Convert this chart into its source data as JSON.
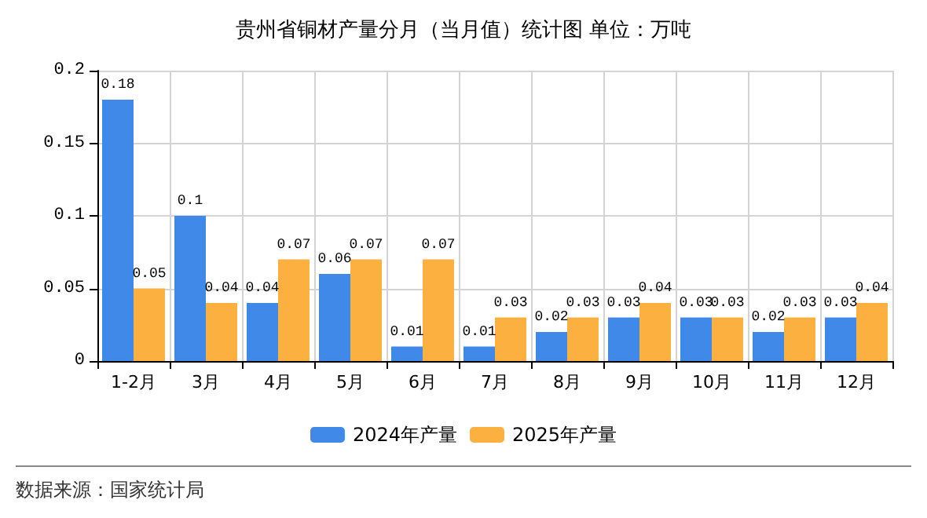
{
  "chart_data": {
    "type": "bar",
    "title": "贵州省铜材产量分月（当月值）统计图 单位：万吨",
    "categories": [
      "1-2月",
      "3月",
      "4月",
      "5月",
      "6月",
      "7月",
      "8月",
      "9月",
      "10月",
      "11月",
      "12月"
    ],
    "series": [
      {
        "name": "2024年产量",
        "color": "#4189e8",
        "values": [
          0.18,
          0.1,
          0.04,
          0.06,
          0.01,
          0.01,
          0.02,
          0.03,
          0.03,
          0.02,
          0.03
        ]
      },
      {
        "name": "2025年产量",
        "color": "#fbb040",
        "values": [
          0.05,
          0.04,
          0.07,
          0.07,
          0.07,
          0.03,
          0.03,
          0.04,
          0.03,
          0.03,
          0.04
        ]
      }
    ],
    "ylim": [
      0,
      0.2
    ],
    "yticks": [
      0,
      0.05,
      0.1,
      0.15,
      0.2
    ],
    "grid": true,
    "legend": "bottom",
    "data_labels": true,
    "annotations": [
      "数据来源：国家统计局"
    ]
  }
}
